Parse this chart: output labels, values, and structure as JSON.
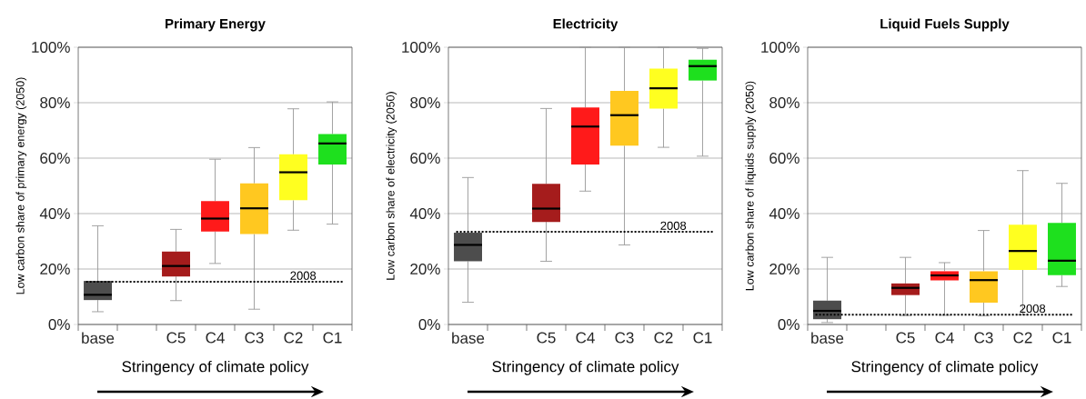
{
  "chart_data": [
    {
      "type": "box",
      "title": "Primary Energy",
      "xlabel": "Stringency of climate policy",
      "ylabel": "Low carbon share of primary energy (2050)",
      "categories": [
        "base",
        null,
        "C5",
        "C4",
        "C3",
        "C2",
        "C1"
      ],
      "colors": [
        "#4d4d4d",
        null,
        "#a51c1c",
        "#ff1a1a",
        "#ffc820",
        "#ffff20",
        "#1ee01e"
      ],
      "boxes": [
        {
          "low": 4.6,
          "q1": 8.8,
          "median": 10.7,
          "q3": 15.7,
          "high": 35.6
        },
        null,
        {
          "low": 8.6,
          "q1": 17.3,
          "median": 21.1,
          "q3": 26.3,
          "high": 34.3
        },
        {
          "low": 22,
          "q1": 33.5,
          "median": 38.2,
          "q3": 44.5,
          "high": 59.6
        },
        {
          "low": 5.5,
          "q1": 32.6,
          "median": 41.9,
          "q3": 50.9,
          "high": 63.8
        },
        {
          "low": 34,
          "q1": 44.8,
          "median": 54.9,
          "q3": 61.4,
          "high": 77.8
        },
        {
          "low": 36.2,
          "q1": 57.7,
          "median": 65.3,
          "q3": 68.7,
          "high": 80.3
        }
      ],
      "ylim": [
        0,
        100
      ],
      "yticks": [
        {
          "value": 0,
          "label": "0%"
        },
        {
          "value": 20,
          "label": "20%"
        },
        {
          "value": 40,
          "label": "40%"
        },
        {
          "value": 60,
          "label": "60%"
        },
        {
          "value": 80,
          "label": "80%"
        },
        {
          "value": 100,
          "label": "100%"
        }
      ],
      "grid": "y",
      "ref_lines": [
        {
          "axis": "y",
          "value": 15.4,
          "color": "#000000",
          "line_style": "dotted"
        }
      ],
      "annotations": [
        {
          "text": "2008",
          "y": 15.4
        }
      ]
    },
    {
      "type": "box",
      "title": "Electricity",
      "xlabel": "Stringency of climate policy",
      "ylabel": "Low carbon share of electricity (2050)",
      "categories": [
        "base",
        null,
        "C5",
        "C4",
        "C3",
        "C2",
        "C1"
      ],
      "colors": [
        "#4d4d4d",
        null,
        "#a51c1c",
        "#ff1a1a",
        "#ffc820",
        "#ffff20",
        "#1ee01e"
      ],
      "boxes": [
        {
          "low": 8,
          "q1": 22.8,
          "median": 28.7,
          "q3": 33.1,
          "high": 53
        },
        null,
        {
          "low": 22.8,
          "q1": 37,
          "median": 41.8,
          "q3": 50.7,
          "high": 77.9
        },
        {
          "low": 48.1,
          "q1": 57.7,
          "median": 71.4,
          "q3": 78.3,
          "high": 100
        },
        {
          "low": 28.7,
          "q1": 64.5,
          "median": 75.5,
          "q3": 84.3,
          "high": 100
        },
        {
          "low": 63.9,
          "q1": 77.9,
          "median": 85.2,
          "q3": 92.3,
          "high": 100
        },
        {
          "low": 60.7,
          "q1": 88,
          "median": 93.2,
          "q3": 95.5,
          "high": 99.6
        }
      ],
      "ylim": [
        0,
        100
      ],
      "yticks": [
        {
          "value": 0,
          "label": "0%"
        },
        {
          "value": 20,
          "label": "20%"
        },
        {
          "value": 40,
          "label": "40%"
        },
        {
          "value": 60,
          "label": "60%"
        },
        {
          "value": 80,
          "label": "80%"
        },
        {
          "value": 100,
          "label": "100%"
        }
      ],
      "grid": "y",
      "ref_lines": [
        {
          "axis": "y",
          "value": 33.4,
          "color": "#000000",
          "line_style": "dotted"
        }
      ],
      "annotations": [
        {
          "text": "2008",
          "y": 33.4
        }
      ]
    },
    {
      "type": "box",
      "title": "Liquid Fuels Supply",
      "xlabel": "Stringency of climate policy",
      "ylabel": "Low carbon share of liquids supply (2050)",
      "categories": [
        "base",
        null,
        "C5",
        "C4",
        "C3",
        "C2",
        "C1"
      ],
      "colors": [
        "#4d4d4d",
        null,
        "#a51c1c",
        "#ff1a1a",
        "#ffc820",
        "#ffff20",
        "#1ee01e"
      ],
      "boxes": [
        {
          "low": 0.7,
          "q1": 1.9,
          "median": 4.9,
          "q3": 8.6,
          "high": 24.2
        },
        null,
        {
          "low": 3.2,
          "q1": 10.6,
          "median": 13.2,
          "q3": 14.8,
          "high": 24.2
        },
        {
          "low": 3.3,
          "q1": 15.9,
          "median": 17.7,
          "q3": 19.2,
          "high": 22.3
        },
        {
          "low": 3.1,
          "q1": 7.9,
          "median": 16,
          "q3": 19.2,
          "high": 33.9
        },
        {
          "low": 3.5,
          "q1": 19.7,
          "median": 26.5,
          "q3": 36,
          "high": 55.5
        },
        {
          "low": 13.7,
          "q1": 17.8,
          "median": 23,
          "q3": 36.6,
          "high": 50.9
        }
      ],
      "ylim": [
        0,
        100
      ],
      "yticks": [
        {
          "value": 0,
          "label": "0%"
        },
        {
          "value": 20,
          "label": "20%"
        },
        {
          "value": 40,
          "label": "40%"
        },
        {
          "value": 60,
          "label": "60%"
        },
        {
          "value": 80,
          "label": "80%"
        },
        {
          "value": 100,
          "label": "100%"
        }
      ],
      "grid": "y",
      "ref_lines": [
        {
          "axis": "y",
          "value": 3.5,
          "color": "#000000",
          "line_style": "dotted"
        }
      ],
      "annotations": [
        {
          "text": "2008",
          "y": 3.5
        }
      ]
    }
  ]
}
